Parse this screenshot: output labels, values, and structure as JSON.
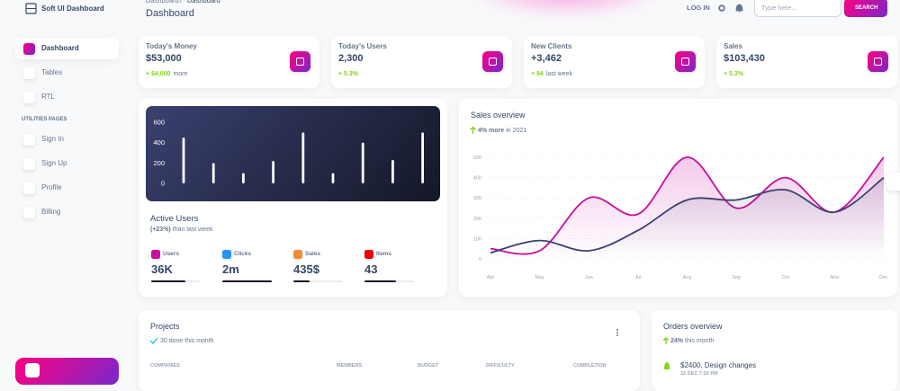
{
  "sidebar": {
    "brand": "Soft UI Dashboard",
    "items": [
      "Dashboard",
      "Tables",
      "RTL"
    ],
    "section": "UTILITIES PAGES",
    "utility_items": [
      "Sign In",
      "Sign Up",
      "Profile",
      "Billing"
    ]
  },
  "navbar": {
    "breadcrumb": [
      "Dashboard",
      "/",
      "Dashboard"
    ],
    "title": "Dashboard",
    "login": "LOG IN",
    "search_placeholder": "Type here...",
    "search_button": "SEARCH"
  },
  "stats": [
    {
      "label": "Today's Money",
      "value": "$53,000",
      "change": "+ $4,000",
      "note": "more"
    },
    {
      "label": "Today's Users",
      "value": "2,300",
      "change": "+ 5.3%"
    },
    {
      "label": "New Clients",
      "value": "+3,462",
      "change": "+ 94",
      "note": "last week"
    },
    {
      "label": "Sales",
      "value": "$103,430",
      "change": "+ 5.3%"
    }
  ],
  "active_users": {
    "chart_data": {
      "type": "bar",
      "values": [
        450,
        200,
        100,
        220,
        500,
        100,
        400,
        230,
        500
      ],
      "color": "#ffffff",
      "ylim": [
        0,
        700
      ],
      "yticks": [
        0,
        200,
        400,
        600
      ]
    },
    "title": "Active Users",
    "change": "(+23%)",
    "subtitle": "than last week",
    "metrics": [
      {
        "label": "Users",
        "value": "36K",
        "color": "#cb0c9f"
      },
      {
        "label": "Clicks",
        "value": "2m",
        "color": "#2196f3"
      },
      {
        "label": "Sales",
        "value": "435$",
        "color": "#f58a35"
      },
      {
        "label": "Items",
        "value": "43",
        "color": "#ea0606"
      }
    ]
  },
  "sales_overview": {
    "title": "Sales overview",
    "change": "4% more",
    "subtitle": "in 2021",
    "chart_data": {
      "type": "line",
      "categories": [
        "Apr",
        "May",
        "Jun",
        "Jul",
        "Aug",
        "Sep",
        "Oct",
        "Nov",
        "Dec"
      ],
      "series": [
        {
          "color": "#cb0c9f",
          "values": [
            50,
            40,
            300,
            220,
            500,
            250,
            400,
            230,
            500
          ]
        },
        {
          "color": "#3a416f",
          "values": [
            30,
            90,
            40,
            140,
            290,
            290,
            340,
            230,
            400
          ]
        }
      ],
      "ylim": [
        0,
        500
      ],
      "yticks": [
        0,
        100,
        200,
        300,
        400,
        500
      ],
      "grid": true
    }
  },
  "projects": {
    "title": "Projects",
    "subtitle": "30 done this month",
    "columns": [
      "COMPANIES",
      "MEMBERS",
      "BUDGET",
      "DIFFICULTY",
      "COMPLETION"
    ]
  },
  "orders": {
    "title": "Orders overview",
    "change": "24%",
    "subtitle": "this month",
    "items": [
      {
        "title": "$2400, Design changes",
        "date": "22 DEC 7:20 PM"
      }
    ]
  }
}
